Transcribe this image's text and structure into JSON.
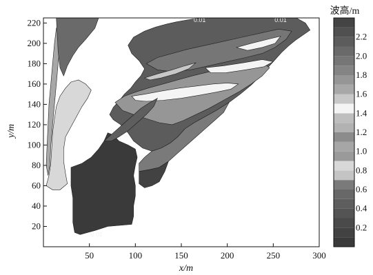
{
  "chart_data": {
    "type": "heatmap",
    "xlabel": "x/m",
    "ylabel": "y/m",
    "xlim": [
      0,
      300
    ],
    "ylim": [
      0,
      225
    ],
    "x_ticks": [
      50,
      100,
      150,
      200,
      250,
      300
    ],
    "y_ticks": [
      20,
      40,
      60,
      80,
      100,
      120,
      140,
      160,
      180,
      200,
      220
    ],
    "colorbar": {
      "title": "波高/m",
      "range": [
        0,
        2.4
      ],
      "tick_values": [
        0.2,
        0.4,
        0.6,
        0.8,
        1.0,
        1.2,
        1.4,
        1.6,
        1.8,
        2.0,
        2.2
      ],
      "levels": [
        {
          "min": 0.0,
          "max": 0.1,
          "color": "#3a3a3a"
        },
        {
          "min": 0.1,
          "max": 0.2,
          "color": "#424242"
        },
        {
          "min": 0.2,
          "max": 0.3,
          "color": "#4a4a4a"
        },
        {
          "min": 0.3,
          "max": 0.4,
          "color": "#545454"
        },
        {
          "min": 0.4,
          "max": 0.5,
          "color": "#5e5e5e"
        },
        {
          "min": 0.5,
          "max": 0.6,
          "color": "#686868"
        },
        {
          "min": 0.6,
          "max": 0.7,
          "color": "#7a7a7a"
        },
        {
          "min": 0.7,
          "max": 0.8,
          "color": "#c4c4c4"
        },
        {
          "min": 0.8,
          "max": 0.9,
          "color": "#d8d8d8"
        },
        {
          "min": 0.9,
          "max": 1.0,
          "color": "#9a9a9a"
        },
        {
          "min": 1.0,
          "max": 1.1,
          "color": "#a6a6a6"
        },
        {
          "min": 1.1,
          "max": 1.2,
          "color": "#8c8c8c"
        },
        {
          "min": 1.2,
          "max": 1.3,
          "color": "#b2b2b2"
        },
        {
          "min": 1.3,
          "max": 1.4,
          "color": "#bebebe"
        },
        {
          "min": 1.4,
          "max": 1.5,
          "color": "#f4f4f4"
        },
        {
          "min": 1.5,
          "max": 1.6,
          "color": "#c8c8c8"
        },
        {
          "min": 1.6,
          "max": 1.7,
          "color": "#a8a8a8"
        },
        {
          "min": 1.7,
          "max": 1.8,
          "color": "#969696"
        },
        {
          "min": 1.8,
          "max": 1.9,
          "color": "#848484"
        },
        {
          "min": 1.9,
          "max": 2.0,
          "color": "#767676"
        },
        {
          "min": 2.0,
          "max": 2.1,
          "color": "#6a6a6a"
        },
        {
          "min": 2.1,
          "max": 2.2,
          "color": "#5c5c5c"
        },
        {
          "min": 2.2,
          "max": 2.3,
          "color": "#505050"
        },
        {
          "min": 2.3,
          "max": 2.4,
          "color": "#444444"
        }
      ]
    },
    "contour_labels": [
      {
        "text": "0.01",
        "x": 58,
        "y": 10
      },
      {
        "text": "0.01",
        "x": 258,
        "y": 221
      },
      {
        "text": "0.01",
        "x": 170,
        "y": 221
      }
    ],
    "regions": [
      {
        "name": "open-sea",
        "value": 2.1,
        "points": [
          [
            72,
            130
          ],
          [
            76,
            137
          ],
          [
            82,
            143
          ],
          [
            88,
            150
          ],
          [
            95,
            156
          ],
          [
            100,
            162
          ],
          [
            106,
            168
          ],
          [
            110,
            175
          ],
          [
            104,
            183
          ],
          [
            96,
            190
          ],
          [
            92,
            198
          ],
          [
            98,
            206
          ],
          [
            110,
            212
          ],
          [
            122,
            216
          ],
          [
            134,
            219
          ],
          [
            144,
            221
          ],
          [
            156,
            223
          ],
          [
            170,
            225
          ],
          [
            200,
            225
          ],
          [
            240,
            225
          ],
          [
            262,
            225
          ],
          [
            275,
            225
          ],
          [
            285,
            220
          ],
          [
            290,
            213
          ],
          [
            282,
            208
          ],
          [
            274,
            203
          ],
          [
            266,
            197
          ],
          [
            259,
            191
          ],
          [
            252,
            184
          ],
          [
            244,
            176
          ],
          [
            236,
            168
          ],
          [
            226,
            159
          ],
          [
            214,
            150
          ],
          [
            202,
            142
          ],
          [
            188,
            134
          ],
          [
            176,
            128
          ],
          [
            164,
            122
          ],
          [
            154,
            116
          ],
          [
            146,
            108
          ],
          [
            138,
            102
          ],
          [
            128,
            97
          ],
          [
            118,
            94
          ],
          [
            108,
            97
          ],
          [
            98,
            104
          ],
          [
            92,
            112
          ],
          [
            84,
            120
          ],
          [
            76,
            125
          ]
        ]
      },
      {
        "name": "mid-shoal",
        "value": 1.7,
        "points": [
          [
            78,
            142
          ],
          [
            88,
            148
          ],
          [
            100,
            152
          ],
          [
            114,
            156
          ],
          [
            130,
            160
          ],
          [
            146,
            164
          ],
          [
            162,
            168
          ],
          [
            180,
            172
          ],
          [
            200,
            176
          ],
          [
            220,
            180
          ],
          [
            236,
            182
          ],
          [
            246,
            176
          ],
          [
            238,
            168
          ],
          [
            226,
            160
          ],
          [
            212,
            152
          ],
          [
            196,
            144
          ],
          [
            180,
            136
          ],
          [
            166,
            130
          ],
          [
            152,
            124
          ],
          [
            140,
            120
          ],
          [
            126,
            122
          ],
          [
            112,
            126
          ],
          [
            98,
            130
          ],
          [
            86,
            134
          ]
        ]
      },
      {
        "name": "upper-shoal",
        "value": 1.9,
        "points": [
          [
            112,
            180
          ],
          [
            124,
            186
          ],
          [
            140,
            190
          ],
          [
            156,
            194
          ],
          [
            176,
            198
          ],
          [
            196,
            202
          ],
          [
            216,
            206
          ],
          [
            236,
            210
          ],
          [
            256,
            214
          ],
          [
            270,
            212
          ],
          [
            264,
            204
          ],
          [
            252,
            196
          ],
          [
            238,
            190
          ],
          [
            220,
            186
          ],
          [
            200,
            182
          ],
          [
            180,
            178
          ],
          [
            160,
            174
          ],
          [
            140,
            172
          ],
          [
            124,
            174
          ]
        ]
      },
      {
        "name": "bright-band-1",
        "value": 1.45,
        "points": [
          [
            96,
            148
          ],
          [
            110,
            150
          ],
          [
            128,
            153
          ],
          [
            148,
            156
          ],
          [
            166,
            158
          ],
          [
            184,
            160
          ],
          [
            200,
            161
          ],
          [
            212,
            160
          ],
          [
            204,
            155
          ],
          [
            188,
            152
          ],
          [
            170,
            149
          ],
          [
            150,
            146
          ],
          [
            130,
            144
          ],
          [
            112,
            143
          ],
          [
            100,
            144
          ]
        ]
      },
      {
        "name": "bright-band-2",
        "value": 1.45,
        "points": [
          [
            176,
            176
          ],
          [
            196,
            178
          ],
          [
            218,
            181
          ],
          [
            238,
            184
          ],
          [
            250,
            182
          ],
          [
            240,
            177
          ],
          [
            220,
            174
          ],
          [
            198,
            171
          ],
          [
            182,
            171
          ]
        ]
      },
      {
        "name": "light-band-3",
        "value": 1.55,
        "points": [
          [
            110,
            166
          ],
          [
            124,
            170
          ],
          [
            140,
            174
          ],
          [
            154,
            178
          ],
          [
            166,
            181
          ],
          [
            158,
            175
          ],
          [
            144,
            170
          ],
          [
            128,
            166
          ],
          [
            116,
            164
          ]
        ]
      },
      {
        "name": "bright-band-4",
        "value": 1.45,
        "points": [
          [
            210,
            196
          ],
          [
            226,
            200
          ],
          [
            244,
            204
          ],
          [
            258,
            207
          ],
          [
            252,
            200
          ],
          [
            238,
            196
          ],
          [
            222,
            193
          ]
        ]
      },
      {
        "name": "left-channel",
        "value": 0.85,
        "points": [
          [
            3,
            60
          ],
          [
            6,
            70
          ],
          [
            8,
            82
          ],
          [
            9,
            96
          ],
          [
            10,
            112
          ],
          [
            12,
            126
          ],
          [
            14,
            138
          ],
          [
            18,
            148
          ],
          [
            24,
            156
          ],
          [
            30,
            162
          ],
          [
            38,
            164
          ],
          [
            46,
            160
          ],
          [
            52,
            154
          ],
          [
            48,
            146
          ],
          [
            42,
            138
          ],
          [
            36,
            128
          ],
          [
            30,
            118
          ],
          [
            24,
            108
          ],
          [
            22,
            96
          ],
          [
            22,
            84
          ],
          [
            24,
            72
          ],
          [
            26,
            62
          ],
          [
            18,
            56
          ],
          [
            10,
            56
          ]
        ]
      },
      {
        "name": "left-strip",
        "value": 1.6,
        "points": [
          [
            3,
            80
          ],
          [
            4,
            100
          ],
          [
            5,
            120
          ],
          [
            6,
            140
          ],
          [
            8,
            160
          ],
          [
            10,
            180
          ],
          [
            12,
            200
          ],
          [
            14,
            215
          ],
          [
            22,
            218
          ],
          [
            18,
            200
          ],
          [
            16,
            180
          ],
          [
            14,
            160
          ],
          [
            12,
            140
          ],
          [
            10,
            120
          ],
          [
            8,
            100
          ],
          [
            7,
            80
          ],
          [
            5,
            70
          ]
        ]
      },
      {
        "name": "upper-left-strip",
        "value": 2.0,
        "points": [
          [
            14,
            225
          ],
          [
            30,
            225
          ],
          [
            46,
            225
          ],
          [
            60,
            225
          ],
          [
            56,
            215
          ],
          [
            46,
            204
          ],
          [
            38,
            196
          ],
          [
            32,
            188
          ],
          [
            26,
            178
          ],
          [
            22,
            168
          ],
          [
            18,
            176
          ],
          [
            16,
            192
          ],
          [
            15,
            208
          ]
        ]
      },
      {
        "name": "east-shore",
        "value": 0.6,
        "points": [
          [
            118,
            94
          ],
          [
            128,
            97
          ],
          [
            138,
            102
          ],
          [
            146,
            108
          ],
          [
            154,
            116
          ],
          [
            164,
            122
          ],
          [
            176,
            128
          ],
          [
            188,
            134
          ],
          [
            202,
            142
          ],
          [
            196,
            132
          ],
          [
            186,
            124
          ],
          [
            176,
            116
          ],
          [
            166,
            108
          ],
          [
            156,
            100
          ],
          [
            146,
            92
          ],
          [
            136,
            84
          ],
          [
            126,
            78
          ],
          [
            116,
            76
          ],
          [
            104,
            74
          ],
          [
            104,
            82
          ],
          [
            110,
            88
          ]
        ]
      },
      {
        "name": "breakwater-lobe",
        "value": 0.1,
        "points": [
          [
            104,
            74
          ],
          [
            116,
            76
          ],
          [
            126,
            78
          ],
          [
            136,
            84
          ],
          [
            132,
            74
          ],
          [
            126,
            64
          ],
          [
            118,
            60
          ],
          [
            110,
            58
          ],
          [
            104,
            62
          ]
        ]
      },
      {
        "name": "basin",
        "value": 0.05,
        "points": [
          [
            30,
            78
          ],
          [
            42,
            82
          ],
          [
            52,
            88
          ],
          [
            60,
            96
          ],
          [
            66,
            104
          ],
          [
            70,
            112
          ],
          [
            76,
            110
          ],
          [
            82,
            104
          ],
          [
            92,
            100
          ],
          [
            100,
            96
          ],
          [
            102,
            88
          ],
          [
            100,
            80
          ],
          [
            98,
            70
          ],
          [
            100,
            60
          ],
          [
            100,
            50
          ],
          [
            98,
            40
          ],
          [
            98,
            30
          ],
          [
            96,
            22
          ],
          [
            70,
            20
          ],
          [
            56,
            16
          ],
          [
            40,
            12
          ],
          [
            34,
            14
          ],
          [
            32,
            24
          ],
          [
            32,
            36
          ],
          [
            32,
            48
          ],
          [
            30,
            60
          ],
          [
            30,
            70
          ]
        ]
      },
      {
        "name": "ship-lane",
        "value": 0.45,
        "points": [
          [
            66,
            104
          ],
          [
            76,
            112
          ],
          [
            86,
            120
          ],
          [
            96,
            128
          ],
          [
            106,
            136
          ],
          [
            116,
            142
          ],
          [
            124,
            146
          ],
          [
            120,
            138
          ],
          [
            112,
            130
          ],
          [
            102,
            122
          ],
          [
            92,
            114
          ],
          [
            82,
            108
          ],
          [
            74,
            104
          ]
        ]
      }
    ]
  }
}
